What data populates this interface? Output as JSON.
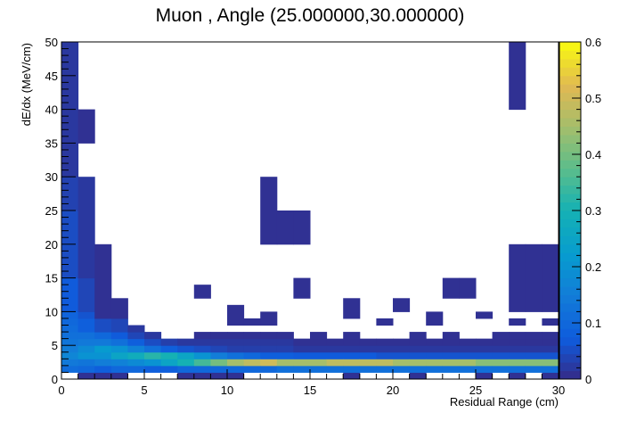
{
  "chart_data": {
    "type": "heatmap",
    "title": "Muon , Angle (25.000000,30.000000)",
    "xlabel": "Residual Range (cm)",
    "ylabel": "dE/dx (MeV/cm)",
    "xlim": [
      0,
      30
    ],
    "ylim": [
      0,
      50
    ],
    "zlim": [
      0,
      0.6
    ],
    "xticks": [
      0,
      5,
      10,
      15,
      20,
      25,
      30
    ],
    "yticks": [
      0,
      5,
      10,
      15,
      20,
      25,
      30,
      35,
      40,
      45,
      50
    ],
    "zticks": [
      0,
      0.1,
      0.2,
      0.3,
      0.4,
      0.5,
      0.6
    ],
    "bin_width_x": 1,
    "bin_width_y": 1,
    "cells": [
      [
        0,
        1,
        1,
        0.11
      ],
      [
        0,
        2,
        1,
        0.14
      ],
      [
        0,
        3,
        1,
        0.17
      ],
      [
        0,
        4,
        1,
        0.15
      ],
      [
        0,
        5,
        1,
        0.13
      ],
      [
        0,
        6,
        1,
        0.12
      ],
      [
        0,
        7,
        1,
        0.11
      ],
      [
        0,
        8,
        1,
        0.1
      ],
      [
        0,
        9,
        1,
        0.09
      ],
      [
        0,
        10,
        5,
        0.07
      ],
      [
        0,
        15,
        10,
        0.05
      ],
      [
        0,
        25,
        5,
        0.035
      ],
      [
        0,
        30,
        20,
        0.02
      ],
      [
        1,
        0,
        1,
        0.01
      ],
      [
        1,
        1,
        1,
        0.1
      ],
      [
        1,
        2,
        1,
        0.13
      ],
      [
        1,
        3,
        1,
        0.2
      ],
      [
        1,
        4,
        1,
        0.18
      ],
      [
        1,
        5,
        1,
        0.14
      ],
      [
        1,
        6,
        1,
        0.12
      ],
      [
        1,
        7,
        2,
        0.08
      ],
      [
        1,
        9,
        1,
        0.06
      ],
      [
        1,
        10,
        5,
        0.04
      ],
      [
        1,
        15,
        15,
        0.02
      ],
      [
        1,
        35,
        5,
        0.01
      ],
      [
        2,
        0,
        1,
        0.01
      ],
      [
        2,
        1,
        1,
        0.08
      ],
      [
        2,
        2,
        1,
        0.15
      ],
      [
        2,
        3,
        1,
        0.2
      ],
      [
        2,
        4,
        1,
        0.22
      ],
      [
        2,
        5,
        1,
        0.14
      ],
      [
        2,
        6,
        1,
        0.1
      ],
      [
        2,
        7,
        2,
        0.05
      ],
      [
        2,
        9,
        11,
        0.01
      ],
      [
        3,
        0,
        1,
        0.01
      ],
      [
        3,
        1,
        1,
        0.1
      ],
      [
        3,
        2,
        1,
        0.16
      ],
      [
        3,
        3,
        1,
        0.25
      ],
      [
        3,
        4,
        1,
        0.2
      ],
      [
        3,
        5,
        1,
        0.12
      ],
      [
        3,
        6,
        1,
        0.07
      ],
      [
        3,
        7,
        2,
        0.04
      ],
      [
        3,
        9,
        3,
        0.01
      ],
      [
        4,
        1,
        1,
        0.1
      ],
      [
        4,
        2,
        1,
        0.18
      ],
      [
        4,
        3,
        1,
        0.28
      ],
      [
        4,
        4,
        1,
        0.16
      ],
      [
        4,
        5,
        1,
        0.08
      ],
      [
        4,
        6,
        1,
        0.04
      ],
      [
        4,
        7,
        1,
        0.02
      ],
      [
        5,
        1,
        1,
        0.08
      ],
      [
        5,
        2,
        1,
        0.2
      ],
      [
        5,
        3,
        1,
        0.32
      ],
      [
        5,
        4,
        1,
        0.12
      ],
      [
        5,
        5,
        1,
        0.05
      ],
      [
        5,
        6,
        1,
        0.02
      ],
      [
        6,
        1,
        1,
        0.08
      ],
      [
        6,
        2,
        1,
        0.25
      ],
      [
        6,
        3,
        1,
        0.3
      ],
      [
        6,
        4,
        1,
        0.08
      ],
      [
        6,
        5,
        1,
        0.03
      ],
      [
        7,
        0,
        1,
        0.01
      ],
      [
        7,
        1,
        1,
        0.1
      ],
      [
        7,
        2,
        1,
        0.3
      ],
      [
        7,
        3,
        1,
        0.25
      ],
      [
        7,
        4,
        1,
        0.06
      ],
      [
        7,
        5,
        1,
        0.02
      ],
      [
        8,
        0,
        1,
        0.01
      ],
      [
        8,
        1,
        1,
        0.1
      ],
      [
        8,
        2,
        1,
        0.35
      ],
      [
        8,
        3,
        1,
        0.2
      ],
      [
        8,
        4,
        1,
        0.05
      ],
      [
        8,
        5,
        1,
        0.02
      ],
      [
        8,
        6,
        1,
        0.01
      ],
      [
        8,
        12,
        2,
        0.01
      ],
      [
        9,
        0,
        1,
        0.01
      ],
      [
        9,
        1,
        1,
        0.1
      ],
      [
        9,
        2,
        1,
        0.4
      ],
      [
        9,
        3,
        1,
        0.15
      ],
      [
        9,
        4,
        1,
        0.04
      ],
      [
        9,
        5,
        1,
        0.02
      ],
      [
        9,
        6,
        1,
        0.01
      ],
      [
        10,
        0,
        1,
        0.01
      ],
      [
        10,
        1,
        1,
        0.1
      ],
      [
        10,
        2,
        1,
        0.45
      ],
      [
        10,
        3,
        1,
        0.12
      ],
      [
        10,
        4,
        1,
        0.03
      ],
      [
        10,
        5,
        1,
        0.02
      ],
      [
        10,
        6,
        1,
        0.01
      ],
      [
        10,
        8,
        3,
        0.01
      ],
      [
        11,
        1,
        1,
        0.1
      ],
      [
        11,
        2,
        1,
        0.48
      ],
      [
        11,
        3,
        1,
        0.1
      ],
      [
        11,
        4,
        1,
        0.03
      ],
      [
        11,
        5,
        1,
        0.02
      ],
      [
        11,
        6,
        1,
        0.01
      ],
      [
        11,
        8,
        1,
        0.01
      ],
      [
        12,
        1,
        1,
        0.1
      ],
      [
        12,
        2,
        1,
        0.5
      ],
      [
        12,
        3,
        1,
        0.08
      ],
      [
        12,
        4,
        1,
        0.03
      ],
      [
        12,
        5,
        1,
        0.02
      ],
      [
        12,
        6,
        1,
        0.01
      ],
      [
        12,
        8,
        2,
        0.01
      ],
      [
        12,
        20,
        10,
        0.01
      ],
      [
        13,
        1,
        1,
        0.12
      ],
      [
        13,
        2,
        1,
        0.45
      ],
      [
        13,
        3,
        1,
        0.08
      ],
      [
        13,
        4,
        1,
        0.03
      ],
      [
        13,
        5,
        1,
        0.02
      ],
      [
        13,
        6,
        1,
        0.01
      ],
      [
        13,
        20,
        5,
        0.01
      ],
      [
        14,
        1,
        1,
        0.12
      ],
      [
        14,
        2,
        1,
        0.45
      ],
      [
        14,
        3,
        1,
        0.07
      ],
      [
        14,
        4,
        1,
        0.02
      ],
      [
        14,
        5,
        1,
        0.01
      ],
      [
        14,
        12,
        3,
        0.01
      ],
      [
        14,
        20,
        5,
        0.01
      ],
      [
        15,
        1,
        1,
        0.12
      ],
      [
        15,
        2,
        1,
        0.45
      ],
      [
        15,
        3,
        1,
        0.07
      ],
      [
        15,
        4,
        1,
        0.02
      ],
      [
        15,
        5,
        1,
        0.01
      ],
      [
        15,
        6,
        1,
        0.01
      ],
      [
        16,
        1,
        1,
        0.12
      ],
      [
        16,
        2,
        1,
        0.48
      ],
      [
        16,
        3,
        1,
        0.07
      ],
      [
        16,
        4,
        1,
        0.02
      ],
      [
        16,
        5,
        1,
        0.01
      ],
      [
        17,
        0,
        1,
        0.01
      ],
      [
        17,
        1,
        1,
        0.12
      ],
      [
        17,
        2,
        1,
        0.48
      ],
      [
        17,
        3,
        1,
        0.07
      ],
      [
        17,
        4,
        1,
        0.02
      ],
      [
        17,
        5,
        1,
        0.01
      ],
      [
        17,
        6,
        1,
        0.01
      ],
      [
        17,
        9,
        3,
        0.01
      ],
      [
        18,
        1,
        1,
        0.12
      ],
      [
        18,
        2,
        1,
        0.48
      ],
      [
        18,
        3,
        1,
        0.07
      ],
      [
        18,
        4,
        1,
        0.02
      ],
      [
        18,
        5,
        1,
        0.01
      ],
      [
        19,
        1,
        1,
        0.12
      ],
      [
        19,
        2,
        1,
        0.48
      ],
      [
        19,
        3,
        1,
        0.06
      ],
      [
        19,
        4,
        1,
        0.02
      ],
      [
        19,
        5,
        1,
        0.01
      ],
      [
        19,
        8,
        1,
        0.01
      ],
      [
        20,
        1,
        1,
        0.12
      ],
      [
        20,
        2,
        1,
        0.45
      ],
      [
        20,
        3,
        1,
        0.06
      ],
      [
        20,
        4,
        1,
        0.02
      ],
      [
        20,
        5,
        1,
        0.01
      ],
      [
        20,
        10,
        2,
        0.01
      ],
      [
        21,
        0,
        1,
        0.01
      ],
      [
        21,
        1,
        1,
        0.12
      ],
      [
        21,
        2,
        1,
        0.45
      ],
      [
        21,
        3,
        1,
        0.06
      ],
      [
        21,
        4,
        1,
        0.02
      ],
      [
        21,
        5,
        1,
        0.01
      ],
      [
        21,
        6,
        1,
        0.01
      ],
      [
        22,
        1,
        1,
        0.12
      ],
      [
        22,
        2,
        1,
        0.45
      ],
      [
        22,
        3,
        1,
        0.06
      ],
      [
        22,
        4,
        1,
        0.02
      ],
      [
        22,
        5,
        1,
        0.01
      ],
      [
        22,
        8,
        2,
        0.01
      ],
      [
        23,
        1,
        1,
        0.12
      ],
      [
        23,
        2,
        1,
        0.45
      ],
      [
        23,
        3,
        1,
        0.06
      ],
      [
        23,
        4,
        1,
        0.02
      ],
      [
        23,
        5,
        1,
        0.01
      ],
      [
        23,
        6,
        1,
        0.01
      ],
      [
        23,
        12,
        3,
        0.01
      ],
      [
        24,
        1,
        1,
        0.12
      ],
      [
        24,
        2,
        1,
        0.45
      ],
      [
        24,
        3,
        1,
        0.06
      ],
      [
        24,
        4,
        1,
        0.02
      ],
      [
        24,
        5,
        1,
        0.01
      ],
      [
        24,
        12,
        3,
        0.01
      ],
      [
        25,
        0,
        1,
        0.01
      ],
      [
        25,
        1,
        1,
        0.12
      ],
      [
        25,
        2,
        1,
        0.42
      ],
      [
        25,
        3,
        1,
        0.06
      ],
      [
        25,
        4,
        1,
        0.02
      ],
      [
        25,
        5,
        1,
        0.01
      ],
      [
        25,
        9,
        1,
        0.01
      ],
      [
        26,
        1,
        1,
        0.12
      ],
      [
        26,
        2,
        1,
        0.42
      ],
      [
        26,
        3,
        1,
        0.06
      ],
      [
        26,
        4,
        1,
        0.02
      ],
      [
        26,
        5,
        1,
        0.01
      ],
      [
        26,
        6,
        1,
        0.01
      ],
      [
        27,
        0,
        1,
        0.01
      ],
      [
        27,
        1,
        1,
        0.12
      ],
      [
        27,
        2,
        1,
        0.42
      ],
      [
        27,
        3,
        1,
        0.06
      ],
      [
        27,
        4,
        1,
        0.02
      ],
      [
        27,
        5,
        1,
        0.01
      ],
      [
        27,
        6,
        1,
        0.01
      ],
      [
        27,
        8,
        1,
        0.01
      ],
      [
        27,
        10,
        10,
        0.01
      ],
      [
        27,
        40,
        10,
        0.01
      ],
      [
        28,
        1,
        1,
        0.12
      ],
      [
        28,
        2,
        1,
        0.42
      ],
      [
        28,
        3,
        1,
        0.06
      ],
      [
        28,
        4,
        1,
        0.02
      ],
      [
        28,
        5,
        1,
        0.01
      ],
      [
        28,
        6,
        1,
        0.01
      ],
      [
        28,
        10,
        10,
        0.01
      ],
      [
        29,
        0,
        1,
        0.01
      ],
      [
        29,
        1,
        1,
        0.12
      ],
      [
        29,
        2,
        1,
        0.42
      ],
      [
        29,
        3,
        1,
        0.06
      ],
      [
        29,
        4,
        1,
        0.02
      ],
      [
        29,
        5,
        1,
        0.01
      ],
      [
        29,
        6,
        1,
        0.01
      ],
      [
        29,
        8,
        1,
        0.01
      ],
      [
        29,
        10,
        10,
        0.01
      ]
    ]
  }
}
